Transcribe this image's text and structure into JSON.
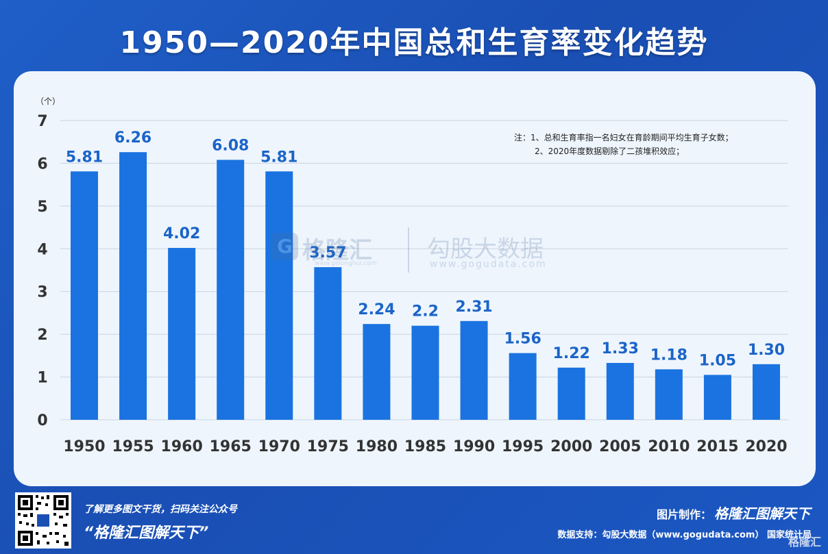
{
  "header": {
    "title": "1950—2020年中国总和生育率变化趋势"
  },
  "note": {
    "line1": "注：1、总和生育率指一名妇女在育龄期间平均生育子女数；",
    "line2": "2、2020年度数据剔除了二孩堆积效应；"
  },
  "watermark": {
    "logo_glyph": "G",
    "brand1": "格隆汇",
    "brand1_sub": "www.gelonghui.com",
    "brand2": "勾股大数据",
    "brand2_sub": "www.gogudata.com"
  },
  "footer": {
    "promo_line": "了解更多图文干货，扫码关注公众号",
    "promo_slogan": "“格隆汇图解天下”",
    "credit_label": "图片制作：",
    "credit_brand": "格隆汇图解天下",
    "source_line": "数据支持：勾股大数据（www.gogudata.com）  国家统计局",
    "corner_logo": "格隆汇"
  },
  "colors": {
    "bar": "#1a73e0",
    "label": "#1b64c8",
    "background": "#1f5fc8",
    "panel": "#eef5fd"
  },
  "chart_data": {
    "type": "bar",
    "title": "1950—2020年中国总和生育率变化趋势",
    "unit_label": "（个）",
    "categories": [
      "1950",
      "1955",
      "1960",
      "1965",
      "1970",
      "1975",
      "1980",
      "1985",
      "1990",
      "1995",
      "2000",
      "2005",
      "2010",
      "2015",
      "2020"
    ],
    "values": [
      5.81,
      6.26,
      4.02,
      6.08,
      5.81,
      3.57,
      2.24,
      2.2,
      2.31,
      1.56,
      1.22,
      1.33,
      1.18,
      1.05,
      1.3
    ],
    "value_labels": [
      "5.81",
      "6.26",
      "4.02",
      "6.08",
      "5.81",
      "3.57",
      "2.24",
      "2.2",
      "2.31",
      "1.56",
      "1.22",
      "1.33",
      "1.18",
      "1.05",
      "1.30"
    ],
    "yticks": [
      "0",
      "1",
      "2",
      "3",
      "4",
      "5",
      "6",
      "7"
    ],
    "ylim": [
      0,
      7
    ],
    "grid": true
  }
}
